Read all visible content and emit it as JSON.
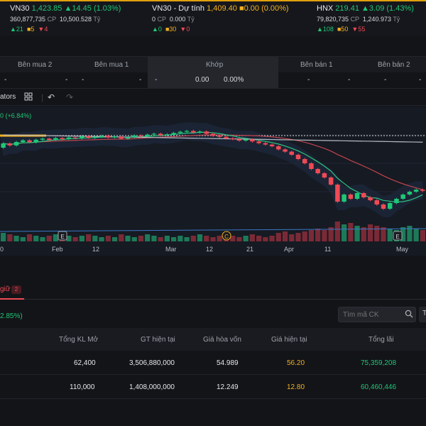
{
  "tickers": [
    {
      "name": "VN30",
      "price": "1,423.85",
      "change": "▲14.45 (1.03%)",
      "volume": "360,877,735",
      "volume_unit": "CP",
      "value": "10,500.528",
      "value_unit": "Tỷ",
      "up": "▲21",
      "flat": "■5",
      "down": "▼4"
    },
    {
      "name": "VN30 - Dự tính",
      "price": "1,409.40",
      "change": "■0.00 (0.00%)",
      "volume": "0",
      "volume_unit": "CP",
      "value": "0.000",
      "value_unit": "Tỷ",
      "up": "▲0",
      "flat": "■30",
      "down": "▼0"
    },
    {
      "name": "HNX",
      "price": "219.41",
      "change": "▲3.09 (1.43%)",
      "volume": "79,820,735",
      "volume_unit": "CP",
      "value": "1,240.973",
      "value_unit": "Tỷ",
      "up": "▲108",
      "flat": "■50",
      "down": "▼55"
    }
  ],
  "order_book": {
    "headers": {
      "buy2": "Bên mua 2",
      "buy1": "Bên mua 1",
      "match": "Khớp",
      "sell1": "Bên bán 1",
      "sell2": "Bên bán 2"
    },
    "row": {
      "b2_price": "-",
      "b2_vol": "-",
      "b1_price": "-",
      "b1_vol": "-",
      "m_dash": "-",
      "m_price": "0.00",
      "m_pct": "0.00%",
      "s1_price": "-",
      "s1_vol": "-",
      "s2_price": "-",
      "s2_vol": "-"
    }
  },
  "toolbar": {
    "indicators": "ators"
  },
  "chart_data": {
    "type": "candlestick",
    "legend_partial": "0 (+6.84%)",
    "x_ticks": [
      "0",
      "Feb",
      "12",
      "Mar",
      "12",
      "21",
      "Apr",
      "11",
      "May"
    ],
    "markers": [
      "E",
      "C",
      "E"
    ],
    "candles": [
      {
        "o": 51.0,
        "c": 52.5
      },
      {
        "o": 52.5,
        "c": 51.8
      },
      {
        "o": 51.8,
        "c": 53.0
      },
      {
        "o": 53.0,
        "c": 53.6
      },
      {
        "o": 53.6,
        "c": 52.9
      },
      {
        "o": 52.9,
        "c": 53.8
      },
      {
        "o": 53.8,
        "c": 54.2
      },
      {
        "o": 54.2,
        "c": 53.7
      },
      {
        "o": 53.7,
        "c": 54.4
      },
      {
        "o": 54.4,
        "c": 54.0
      },
      {
        "o": 54.0,
        "c": 54.6
      },
      {
        "o": 54.6,
        "c": 54.3
      },
      {
        "o": 54.3,
        "c": 55.0
      },
      {
        "o": 55.0,
        "c": 54.5
      },
      {
        "o": 54.5,
        "c": 54.8
      },
      {
        "o": 54.8,
        "c": 55.2
      },
      {
        "o": 55.2,
        "c": 54.6
      },
      {
        "o": 54.6,
        "c": 54.9
      },
      {
        "o": 54.9,
        "c": 54.2
      },
      {
        "o": 54.2,
        "c": 54.7
      },
      {
        "o": 54.7,
        "c": 55.3
      },
      {
        "o": 55.3,
        "c": 55.0
      },
      {
        "o": 55.0,
        "c": 55.6
      },
      {
        "o": 55.6,
        "c": 55.9
      },
      {
        "o": 55.9,
        "c": 55.4
      },
      {
        "o": 55.4,
        "c": 55.7
      },
      {
        "o": 55.7,
        "c": 56.2
      },
      {
        "o": 56.2,
        "c": 56.6
      },
      {
        "o": 56.6,
        "c": 56.9
      },
      {
        "o": 56.9,
        "c": 56.3
      },
      {
        "o": 56.3,
        "c": 56.7
      },
      {
        "o": 56.7,
        "c": 55.9
      },
      {
        "o": 55.9,
        "c": 55.2
      },
      {
        "o": 55.2,
        "c": 54.8
      },
      {
        "o": 54.8,
        "c": 54.3
      },
      {
        "o": 54.3,
        "c": 54.0
      },
      {
        "o": 54.0,
        "c": 53.5
      },
      {
        "o": 53.5,
        "c": 53.9
      },
      {
        "o": 53.9,
        "c": 53.2
      },
      {
        "o": 53.2,
        "c": 52.6
      },
      {
        "o": 52.6,
        "c": 52.1
      },
      {
        "o": 52.1,
        "c": 51.5
      },
      {
        "o": 51.5,
        "c": 50.4
      },
      {
        "o": 50.4,
        "c": 49.6
      },
      {
        "o": 49.6,
        "c": 48.5
      },
      {
        "o": 48.5,
        "c": 47.0
      },
      {
        "o": 47.0,
        "c": 45.5
      },
      {
        "o": 45.5,
        "c": 43.5
      },
      {
        "o": 43.5,
        "c": 42.0
      },
      {
        "o": 42.0,
        "c": 40.5
      },
      {
        "o": 40.5,
        "c": 38.0
      },
      {
        "o": 38.0,
        "c": 32.0
      },
      {
        "o": 32.0,
        "c": 34.5
      },
      {
        "o": 34.5,
        "c": 33.0
      },
      {
        "o": 33.0,
        "c": 35.0
      },
      {
        "o": 35.0,
        "c": 33.5
      },
      {
        "o": 33.5,
        "c": 32.5
      },
      {
        "o": 32.5,
        "c": 31.0
      },
      {
        "o": 31.0,
        "c": 29.5
      },
      {
        "o": 29.5,
        "c": 31.5
      },
      {
        "o": 31.5,
        "c": 33.0
      },
      {
        "o": 33.0,
        "c": 34.5
      },
      {
        "o": 34.5,
        "c": 35.5
      },
      {
        "o": 35.5,
        "c": 36.2
      },
      {
        "o": 36.2,
        "c": 35.8
      }
    ],
    "volumes": [
      6,
      5,
      4,
      3,
      5,
      4,
      3,
      4,
      5,
      3,
      4,
      3,
      4,
      5,
      4,
      3,
      4,
      3,
      5,
      4,
      3,
      4,
      5,
      4,
      3,
      4,
      3,
      4,
      3,
      4,
      5,
      4,
      3,
      4,
      5,
      4,
      3,
      4,
      5,
      4,
      3,
      4,
      6,
      7,
      5,
      6,
      7,
      8,
      9,
      8,
      10,
      14,
      12,
      13,
      11,
      10,
      12,
      11,
      10,
      9,
      8,
      10,
      11,
      9,
      8
    ]
  },
  "panel": {
    "tab_label": "giữ",
    "tab_count": "2",
    "pct": "2.85%)",
    "search_placeholder": "Tìm mã CK",
    "t_button": "T",
    "headers": {
      "col1": "Tổng KL Mở",
      "col2": "GT hiện tại",
      "col3": "Giá hòa vốn",
      "col4": "Giá hiện tại",
      "col5": "Tổng lãi"
    },
    "rows": [
      {
        "vol": "62,400",
        "value": "3,506,880,000",
        "breakeven": "54.989",
        "current": "56.20",
        "profit": "75,359,208"
      },
      {
        "vol": "110,000",
        "value": "1,408,000,000",
        "breakeven": "12.249",
        "current": "12.80",
        "profit": "60,460,446"
      }
    ]
  }
}
